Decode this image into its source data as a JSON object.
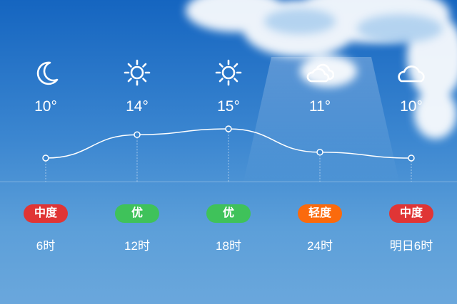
{
  "forecast": [
    {
      "icon": "moon-icon",
      "temp": "10°",
      "aqi": "中度",
      "aqi_color": "#e03535",
      "time": "6时"
    },
    {
      "icon": "sun-icon",
      "temp": "14°",
      "aqi": "优",
      "aqi_color": "#3fc25a",
      "time": "12时"
    },
    {
      "icon": "sun-icon",
      "temp": "15°",
      "aqi": "优",
      "aqi_color": "#3fc25a",
      "time": "18时"
    },
    {
      "icon": "partly-cloudy-icon",
      "temp": "11°",
      "aqi": "轻度",
      "aqi_color": "#fb6a0c",
      "time": "24时"
    },
    {
      "icon": "cloud-icon",
      "temp": "10°",
      "aqi": "中度",
      "aqi_color": "#e03535",
      "time": "明日6时"
    }
  ],
  "temps_numeric": [
    10,
    14,
    15,
    11,
    10
  ]
}
